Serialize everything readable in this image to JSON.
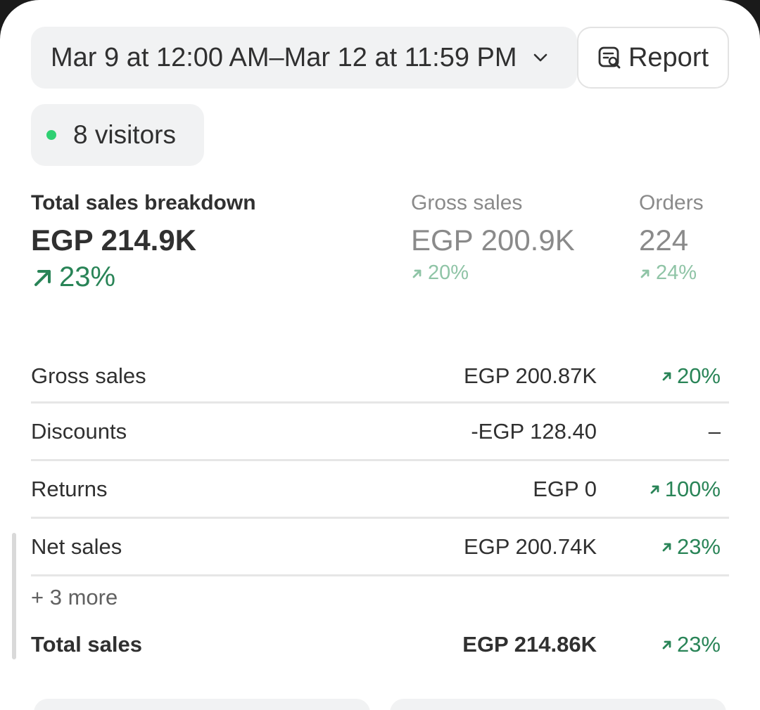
{
  "header": {
    "date_range": "Mar 9 at 12:00 AM–Mar 12 at 11:59 PM",
    "report_label": "Report"
  },
  "visitors": {
    "label": "8 visitors",
    "dot_color": "#2fd072"
  },
  "metrics": [
    {
      "label": "Total sales breakdown",
      "value": "EGP 214.9K",
      "change": "23%"
    },
    {
      "label": "Gross sales",
      "value": "EGP 200.9K",
      "change": "20%"
    },
    {
      "label": "Orders",
      "value": "224",
      "change": "24%"
    }
  ],
  "breakdown": {
    "rows": [
      {
        "name": "Gross sales",
        "amount": "EGP 200.87K",
        "change": "20%"
      },
      {
        "name": "Discounts",
        "amount": "-EGP 128.40",
        "change": "–"
      },
      {
        "name": "Returns",
        "amount": "EGP 0",
        "change": "100%"
      },
      {
        "name": "Net sales",
        "amount": "EGP 200.74K",
        "change": "23%"
      }
    ],
    "more_label": "+ 3 more",
    "total": {
      "name": "Total sales",
      "amount": "EGP 214.86K",
      "change": "23%"
    }
  },
  "colors": {
    "positive": "#298457",
    "positive_muted": "#8fc4a6",
    "chip_bg": "#f1f2f3"
  }
}
